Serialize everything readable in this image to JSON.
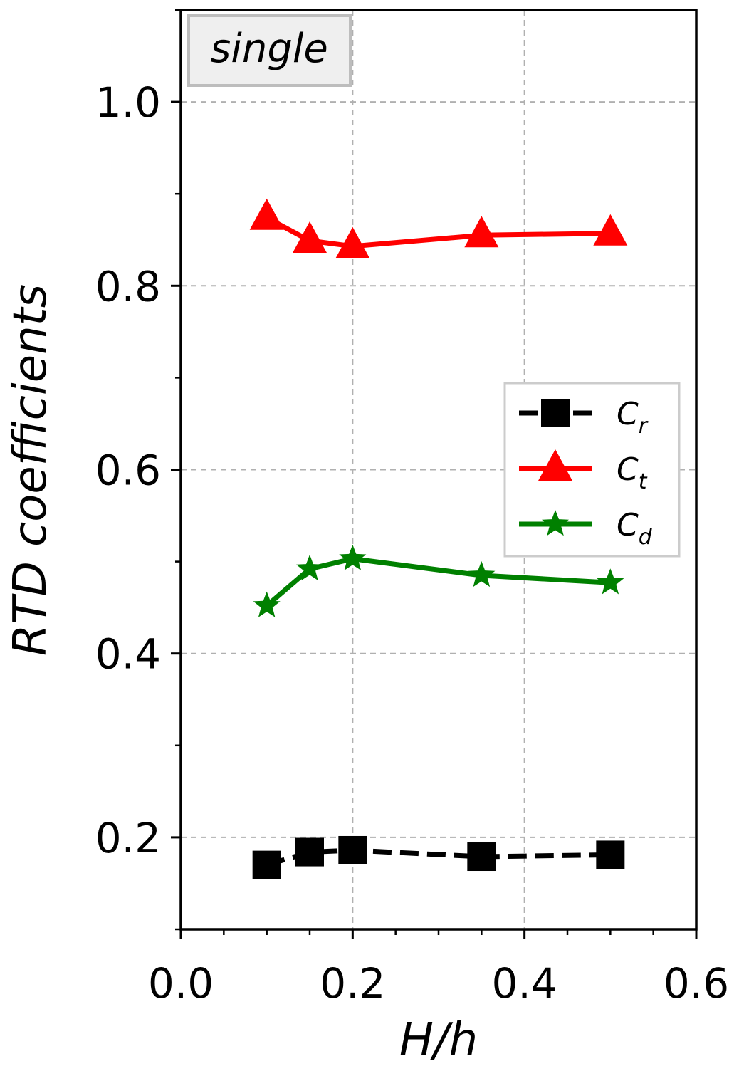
{
  "chart_data": {
    "type": "line",
    "title": "",
    "xlabel": "H/h",
    "ylabel": "RTD coefficients",
    "xlim": [
      0.0,
      0.6
    ],
    "ylim": [
      0.1,
      1.1
    ],
    "x_major_ticks": [
      0.0,
      0.2,
      0.4,
      0.6
    ],
    "x_tick_labels": [
      "0.0",
      "0.2",
      "0.4",
      "0.6"
    ],
    "x_minor_ticks": [
      0.05,
      0.1,
      0.15,
      0.25,
      0.3,
      0.35,
      0.45,
      0.5,
      0.55
    ],
    "y_major_ticks": [
      0.2,
      0.4,
      0.6,
      0.8,
      1.0
    ],
    "y_tick_labels": [
      "0.2",
      "0.4",
      "0.6",
      "0.8",
      "1.0"
    ],
    "y_minor_ticks": [
      0.1,
      0.3,
      0.5,
      0.7,
      0.9,
      1.1
    ],
    "grid": true,
    "legend_position": "center-right",
    "annotation": "single",
    "x": [
      0.1,
      0.15,
      0.2,
      0.35,
      0.5
    ],
    "series": [
      {
        "name": "C",
        "name_subscript": "r",
        "values": [
          0.17,
          0.184,
          0.186,
          0.179,
          0.181
        ],
        "color": "#000000",
        "marker": "square",
        "line_style": "dashed"
      },
      {
        "name": "C",
        "name_subscript": "t",
        "values": [
          0.874,
          0.849,
          0.843,
          0.855,
          0.857
        ],
        "color": "#ff0000",
        "marker": "triangle",
        "line_style": "solid"
      },
      {
        "name": "C",
        "name_subscript": "d",
        "values": [
          0.452,
          0.492,
          0.503,
          0.485,
          0.477
        ],
        "color": "#008000",
        "marker": "star",
        "line_style": "solid"
      }
    ]
  }
}
